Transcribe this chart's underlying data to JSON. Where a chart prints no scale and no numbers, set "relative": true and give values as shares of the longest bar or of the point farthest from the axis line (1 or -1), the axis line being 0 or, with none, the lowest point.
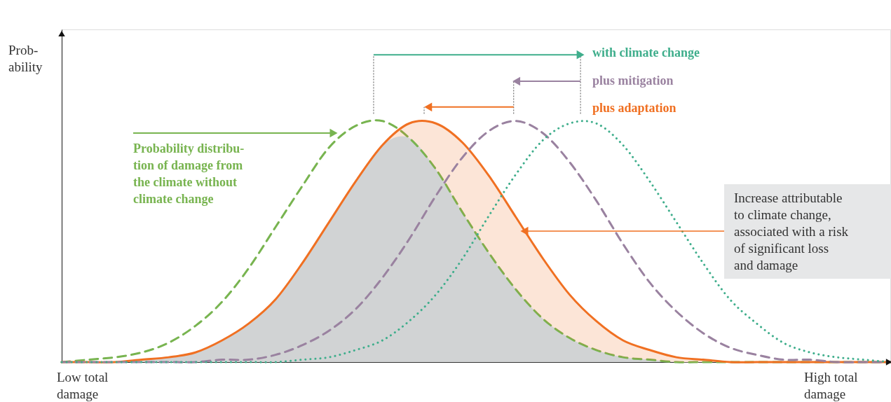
{
  "chart_data": {
    "type": "line",
    "relative": true,
    "ylabel": "Prob-\nability",
    "categories": [
      null,
      null,
      null,
      null,
      null,
      null,
      null,
      null,
      null,
      null,
      null,
      null,
      null,
      null,
      null,
      null,
      null,
      null,
      null,
      null,
      null,
      null,
      null,
      null,
      null,
      null,
      null,
      null,
      null,
      null,
      null,
      null
    ],
    "annotations": [
      "with climate change",
      "plus mitigation",
      "plus adaptation",
      "Probability distribu-\ntion of damage from\nthe climate without\nclimate change",
      "Increase attributable\nto climate change,\nassociated with a risk\nof significant loss\nand damage",
      "Low total\ndamage",
      "High total\ndamage"
    ],
    "series": [
      {
        "type": "area",
        "color": "#d1d3d4",
        "values": [
          0,
          0,
          0,
          0.01,
          0.02,
          0.04,
          0.09,
          0.16,
          0.26,
          0.41,
          0.58,
          0.75,
          0.9,
          0.93,
          0.8,
          0.62,
          0.45,
          0.3,
          0.18,
          0.1,
          0.05,
          0.02,
          0.01,
          0,
          0,
          0,
          0,
          0,
          0,
          0,
          0,
          0
        ]
      },
      {
        "type": "line",
        "line_style": "dashed",
        "color": "#78b450",
        "values": [
          0,
          0.01,
          0.02,
          0.04,
          0.08,
          0.15,
          0.25,
          0.39,
          0.56,
          0.73,
          0.89,
          0.98,
          1,
          0.93,
          0.8,
          0.62,
          0.45,
          0.3,
          0.18,
          0.1,
          0.05,
          0.02,
          0.01,
          0,
          0,
          0,
          0,
          0,
          0,
          0,
          0,
          0
        ]
      },
      {
        "type": "line",
        "line_style": "solid",
        "color": "#f07022",
        "values": [
          0,
          0,
          0,
          0.01,
          0.02,
          0.04,
          0.09,
          0.16,
          0.26,
          0.41,
          0.58,
          0.75,
          0.9,
          0.99,
          0.99,
          0.91,
          0.77,
          0.6,
          0.43,
          0.28,
          0.17,
          0.09,
          0.05,
          0.02,
          0.01,
          0,
          0,
          0,
          0,
          0,
          0,
          0
        ],
        "lower": [
          0,
          0,
          0,
          0.01,
          0.02,
          0.04,
          0.09,
          0.16,
          0.26,
          0.41,
          0.58,
          0.75,
          0.9,
          0.93,
          0.8,
          0.62,
          0.45,
          0.3,
          0.18,
          0.1,
          0.05,
          0.02,
          0.01,
          0,
          0,
          0,
          0,
          0,
          0,
          0,
          0,
          0
        ],
        "upper": [
          0,
          0,
          0,
          0.01,
          0.02,
          0.04,
          0.09,
          0.16,
          0.26,
          0.41,
          0.58,
          0.75,
          0.9,
          0.99,
          0.99,
          0.91,
          0.77,
          0.6,
          0.43,
          0.28,
          0.17,
          0.09,
          0.05,
          0.02,
          0.01,
          0,
          0,
          0,
          0,
          0,
          0,
          0
        ]
      },
      {
        "type": "line",
        "line_style": "dashed",
        "color": "#9a82a0",
        "values": [
          0,
          0,
          0,
          0,
          0,
          0,
          0.01,
          0.01,
          0.03,
          0.07,
          0.13,
          0.22,
          0.35,
          0.51,
          0.69,
          0.85,
          0.96,
          1,
          0.95,
          0.83,
          0.67,
          0.49,
          0.33,
          0.21,
          0.12,
          0.06,
          0.03,
          0.01,
          0.01,
          0,
          0,
          0
        ]
      },
      {
        "type": "line",
        "line_style": "dotted",
        "color": "#3fae8c",
        "values": [
          0,
          0,
          0,
          0,
          0,
          0,
          0,
          0,
          0,
          0.01,
          0.02,
          0.05,
          0.09,
          0.17,
          0.28,
          0.43,
          0.61,
          0.78,
          0.92,
          0.99,
          0.99,
          0.9,
          0.75,
          0.58,
          0.41,
          0.26,
          0.16,
          0.08,
          0.04,
          0.02,
          0.01,
          0
        ]
      }
    ]
  }
}
